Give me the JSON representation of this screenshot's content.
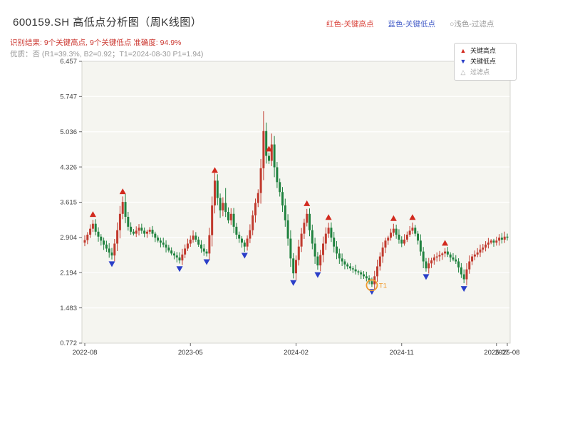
{
  "header": {
    "title": "600159.SH 高低点分析图（周K线图）",
    "legend_top": [
      {
        "label": "红色-关键高点",
        "color": "#d9433b"
      },
      {
        "label": "蓝色-关键低点",
        "color": "#4a62c9"
      },
      {
        "label": "○浅色-过滤点",
        "color": "#999999"
      }
    ],
    "result_line": "识别结果: 9个关键高点, 9个关键低点  准确度: 94.9%",
    "result_color": "#cc3a33",
    "quality_line": "优质：否 (R1=39.3%, B2=0.92；T1=2024-08-30 P1=1.94)",
    "quality_color": "#999999"
  },
  "chart_data": {
    "type": "candlestick",
    "title": "600159.SH 高低点分析图（周K线图）",
    "symbol": "600159.SH",
    "period": "weekly",
    "xlabel": "",
    "ylabel": "",
    "ylim": [
      0.772,
      6.457
    ],
    "yticks": [
      "6.457",
      "5.747",
      "5.036",
      "4.326",
      "3.615",
      "2.904",
      "2.194",
      "1.483",
      "0.772"
    ],
    "xticks": [
      {
        "week": 0,
        "label": "2022-08"
      },
      {
        "week": 39,
        "label": "2023-05"
      },
      {
        "week": 78,
        "label": "2024-02"
      },
      {
        "week": 117,
        "label": "2024-11"
      },
      {
        "week": 152,
        "label": "2025-07"
      },
      {
        "week": 156,
        "label": "2025-08"
      }
    ],
    "first_open": 2.8,
    "closes": [
      2.85,
      2.96,
      3.08,
      3.18,
      3.02,
      2.92,
      2.84,
      2.76,
      2.68,
      2.6,
      2.54,
      2.78,
      3.05,
      3.38,
      3.62,
      3.32,
      3.12,
      3.02,
      2.98,
      3.04,
      3.1,
      3.04,
      2.98,
      3.02,
      3.06,
      2.98,
      2.9,
      2.84,
      2.8,
      2.76,
      2.7,
      2.64,
      2.58,
      2.54,
      2.5,
      2.44,
      2.56,
      2.68,
      2.78,
      2.86,
      2.94,
      2.86,
      2.76,
      2.68,
      2.62,
      2.58,
      2.95,
      3.55,
      4.05,
      3.7,
      3.45,
      3.6,
      3.42,
      3.25,
      3.38,
      3.12,
      2.96,
      2.88,
      2.8,
      2.72,
      2.88,
      3.05,
      3.35,
      3.6,
      3.8,
      4.3,
      5.05,
      4.55,
      4.45,
      4.78,
      4.32,
      4.02,
      3.82,
      3.55,
      3.25,
      2.88,
      2.48,
      2.18,
      2.45,
      2.72,
      2.98,
      3.2,
      3.38,
      3.05,
      2.78,
      2.52,
      2.34,
      2.55,
      2.78,
      2.98,
      3.1,
      2.9,
      2.72,
      2.58,
      2.48,
      2.42,
      2.36,
      2.32,
      2.28,
      2.26,
      2.22,
      2.2,
      2.16,
      2.12,
      2.08,
      2.02,
      1.96,
      2.12,
      2.32,
      2.52,
      2.7,
      2.84,
      2.9,
      3.0,
      3.08,
      2.96,
      2.86,
      2.78,
      2.86,
      2.96,
      3.04,
      3.1,
      2.98,
      2.84,
      2.62,
      2.42,
      2.28,
      2.38,
      2.44,
      2.5,
      2.52,
      2.55,
      2.58,
      2.62,
      2.56,
      2.5,
      2.46,
      2.42,
      2.3,
      2.16,
      2.06,
      2.26,
      2.42,
      2.52,
      2.56,
      2.6,
      2.66,
      2.7,
      2.76,
      2.8,
      2.84,
      2.8,
      2.84,
      2.9,
      2.86,
      2.92,
      2.9
    ],
    "wick_overrides": {
      "47": 3.7,
      "52": 3.9,
      "66": 5.45,
      "69": 5.0
    },
    "key_highs": [
      {
        "week": 3,
        "price": 3.26
      },
      {
        "week": 14,
        "price": 3.72
      },
      {
        "week": 48,
        "price": 4.15
      },
      {
        "week": 68,
        "price": 4.58
      },
      {
        "week": 82,
        "price": 3.48
      },
      {
        "week": 90,
        "price": 3.2
      },
      {
        "week": 114,
        "price": 3.18
      },
      {
        "week": 121,
        "price": 3.2
      },
      {
        "week": 133,
        "price": 2.68
      }
    ],
    "key_lows": [
      {
        "week": 10,
        "price": 2.48
      },
      {
        "week": 35,
        "price": 2.38
      },
      {
        "week": 45,
        "price": 2.52
      },
      {
        "week": 59,
        "price": 2.65
      },
      {
        "week": 77,
        "price": 2.1
      },
      {
        "week": 86,
        "price": 2.26
      },
      {
        "week": 106,
        "price": 1.92
      },
      {
        "week": 126,
        "price": 2.22
      },
      {
        "week": 140,
        "price": 1.98
      }
    ],
    "t1_marker": {
      "week": 106,
      "price": 1.94,
      "label": "T1"
    },
    "inplot_legend": [
      {
        "symbol": "▲",
        "label": "关键高点",
        "color": "#d22a1e",
        "label_color": "#222222"
      },
      {
        "symbol": "▼",
        "label": "关键低点",
        "color": "#2a3ec8",
        "label_color": "#222222"
      },
      {
        "symbol": "△",
        "label": "过滤点",
        "color": "#aaaaaa",
        "label_color": "#999999"
      }
    ],
    "colors": {
      "up": "#c13a2e",
      "down": "#20823f",
      "key_high": "#d22a1e",
      "key_low": "#2a3ec8",
      "filtered": "#aaaaaa",
      "t1": "#f09a2e",
      "grid": "#ffffff",
      "plot_bg": "#f5f5f0",
      "border": "#d5d5cf",
      "axis_text": "#444444"
    }
  }
}
